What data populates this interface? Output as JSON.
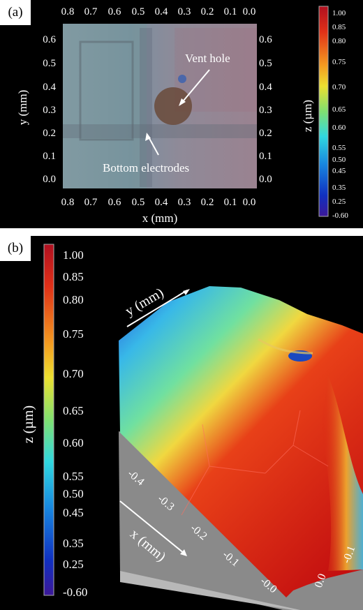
{
  "panel_a": {
    "label": "(a)",
    "x_ticks": [
      "0.8",
      "0.7",
      "0.6",
      "0.5",
      "0.4",
      "0.3",
      "0.2",
      "0.1",
      "0.0"
    ],
    "y_ticks": [
      "0.6",
      "0.5",
      "0.4",
      "0.3",
      "0.2",
      "0.1",
      "0.0"
    ],
    "xlabel": "x (mm)",
    "ylabel": "y (mm)",
    "zlabel": "z (µm)",
    "annotations": {
      "vent": "Vent hole",
      "electrodes": "Bottom electrodes"
    },
    "colorbar_ticks": [
      "1.00",
      "0.85",
      "0.80",
      "0.75",
      "0.70",
      "0.65",
      "0.60",
      "0.55",
      "0.50",
      "0.45",
      "0.35",
      "0.25",
      "-0.60"
    ]
  },
  "panel_b": {
    "label": "(b)",
    "zlabel": "z (µm)",
    "xlabel": "x (mm)",
    "ylabel": "y (mm)",
    "x_ticks": [
      "-0.4",
      "-0.3",
      "-0.2",
      "-0.1",
      "-0.0"
    ],
    "y_ticks": [
      "0.0",
      "-0.1"
    ],
    "colorbar_ticks": [
      "1.00",
      "0.85",
      "0.80",
      "0.75",
      "0.70",
      "0.65",
      "0.60",
      "0.55",
      "0.50",
      "0.45",
      "0.35",
      "0.25",
      "-0.60"
    ]
  },
  "colors": {
    "colormap": [
      "#c0101a",
      "#f04010",
      "#f8a020",
      "#f0e030",
      "#90e060",
      "#30d8e0",
      "#1890e0",
      "#1030c8",
      "#3a1aa0"
    ]
  }
}
